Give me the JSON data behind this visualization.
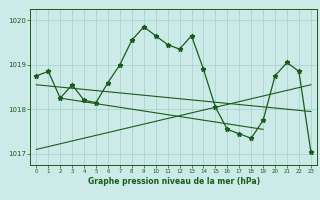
{
  "xlabel": "Graphe pression niveau de la mer (hPa)",
  "background_color": "#cceae7",
  "line_color": "#1a5c1a",
  "grid_color": "#aad4d0",
  "ylim": [
    1016.75,
    1020.25
  ],
  "xlim": [
    -0.5,
    23.5
  ],
  "yticks": [
    1017,
    1018,
    1019,
    1020
  ],
  "xticks": [
    0,
    1,
    2,
    3,
    4,
    5,
    6,
    7,
    8,
    9,
    10,
    11,
    12,
    13,
    14,
    15,
    16,
    17,
    18,
    19,
    20,
    21,
    22,
    23
  ],
  "pressure_data": [
    1018.75,
    1018.85,
    1018.25,
    1018.55,
    1018.2,
    1018.15,
    1018.6,
    1019.0,
    1019.55,
    1019.85,
    1019.65,
    1019.45,
    1019.35,
    1019.65,
    1018.9,
    1018.05,
    1017.55,
    1017.45,
    1017.35,
    1017.75,
    1018.75,
    1019.05,
    1018.85,
    1017.05
  ],
  "trend1_x": [
    0,
    23
  ],
  "trend1_y": [
    1018.55,
    1017.95
  ],
  "trend2_x": [
    0,
    23
  ],
  "trend2_y": [
    1017.1,
    1018.55
  ],
  "trend3_x": [
    2,
    19
  ],
  "trend3_y": [
    1018.25,
    1017.55
  ]
}
